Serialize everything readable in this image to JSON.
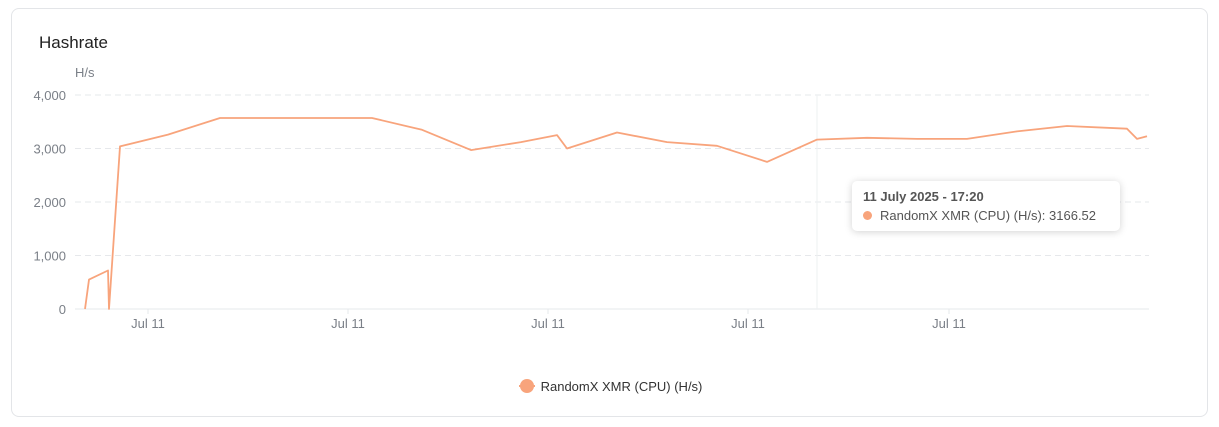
{
  "card": {
    "title": "Hashrate"
  },
  "chart_data": {
    "type": "line",
    "yunit": "H/s",
    "ylim": [
      0,
      4000
    ],
    "yticks": [
      0,
      1000,
      2000,
      3000,
      4000
    ],
    "ytick_labels": [
      "0",
      "1,000",
      "2,000",
      "3,000",
      "4,000"
    ],
    "xtick_labels": [
      "Jul 11",
      "Jul 11",
      "Jul 11",
      "Jul 11",
      "Jul 11"
    ],
    "grid": true,
    "legend_position": "bottom",
    "series": [
      {
        "name": "RandomX XMR (CPU) (H/s)",
        "color": "#f8a47c",
        "values": [
          0,
          550,
          720,
          0,
          3040,
          3260,
          3570,
          3570,
          3570,
          3350,
          2970,
          3120,
          3250,
          3000,
          3300,
          3120,
          3050,
          2750,
          3166.52,
          3200,
          3180,
          3180,
          3320,
          3420,
          3370,
          3180,
          3230
        ]
      }
    ]
  },
  "tooltip": {
    "title": "11 July 2025 - 17:20",
    "series_label": "RandomX XMR (CPU) (H/s): 3166.52"
  },
  "legend": {
    "label": "RandomX XMR (CPU) (H/s)"
  }
}
